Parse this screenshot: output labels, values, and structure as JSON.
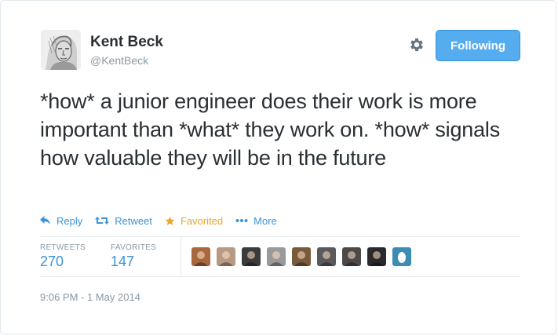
{
  "author": {
    "name": "Kent Beck",
    "handle": "@KentBeck",
    "avatar_icon": "portrait-sketch-icon"
  },
  "header": {
    "settings_icon": "gear-icon",
    "follow_label": "Following"
  },
  "tweet": {
    "text": "*how* a junior engineer does their work is more important than *what* they work on. *how* signals how valuable they will be in the future"
  },
  "actions": {
    "reply_label": "Reply",
    "retweet_label": "Retweet",
    "favorite_label": "Favorited",
    "more_label": "More"
  },
  "stats": {
    "retweets_label": "RETWEETS",
    "retweets_value": "270",
    "favorites_label": "FAVORITES",
    "favorites_value": "147"
  },
  "favoriters": [
    {
      "color": "#a8683e"
    },
    {
      "color": "#b69a86"
    },
    {
      "color": "#3b3b3b"
    },
    {
      "color": "#9a9a9a"
    },
    {
      "color": "#7a5a3a"
    },
    {
      "color": "#5a5a5a"
    },
    {
      "color": "#4a4a4a"
    },
    {
      "color": "#2a2a2a"
    },
    {
      "color": "#3c8db1"
    }
  ],
  "timestamp": "9:06 PM - 1 May 2014"
}
